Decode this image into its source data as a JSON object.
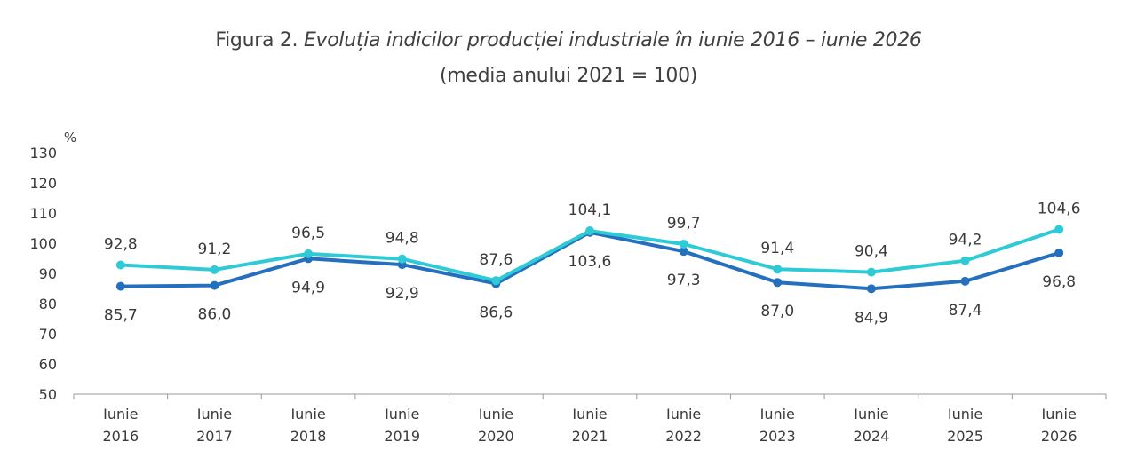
{
  "title": {
    "prefix": "Figura 2. ",
    "main": "Evoluția indicilor producției industriale în iunie 2016 – iunie 2026",
    "subtitle": "(media anului 2021 = 100)"
  },
  "chart_data": {
    "type": "line",
    "ylabel": "%",
    "ylim": [
      50,
      130
    ],
    "yticks": [
      50,
      60,
      70,
      80,
      90,
      100,
      110,
      120,
      130
    ],
    "categories": [
      [
        "Iunie",
        "2016"
      ],
      [
        "Iunie",
        "2017"
      ],
      [
        "Iunie",
        "2018"
      ],
      [
        "Iunie",
        "2019"
      ],
      [
        "Iunie",
        "2020"
      ],
      [
        "Iunie",
        "2021"
      ],
      [
        "Iunie",
        "2022"
      ],
      [
        "Iunie",
        "2023"
      ],
      [
        "Iunie",
        "2024"
      ],
      [
        "Iunie",
        "2025"
      ],
      [
        "Iunie",
        "2026"
      ]
    ],
    "grid": false,
    "legend": "none",
    "series": [
      {
        "color": "#2470bf",
        "values": [
          85.7,
          86.0,
          94.9,
          92.9,
          86.6,
          103.6,
          97.3,
          87.0,
          84.9,
          87.4,
          96.8
        ],
        "labels": [
          "85,7",
          "86,0",
          "94,9",
          "92,9",
          "86,6",
          "103,6",
          "97,3",
          "87,0",
          "84,9",
          "87,4",
          "96,8"
        ],
        "label_position": "below"
      },
      {
        "color": "#2ecbd6",
        "values": [
          92.8,
          91.2,
          96.5,
          94.8,
          87.6,
          104.1,
          99.7,
          91.4,
          90.4,
          94.2,
          104.6
        ],
        "labels": [
          "92,8",
          "91,2",
          "96,5",
          "94,8",
          "87,6",
          "104,1",
          "99,7",
          "91,4",
          "90,4",
          "94,2",
          "104,6"
        ],
        "label_position": "above"
      }
    ]
  }
}
